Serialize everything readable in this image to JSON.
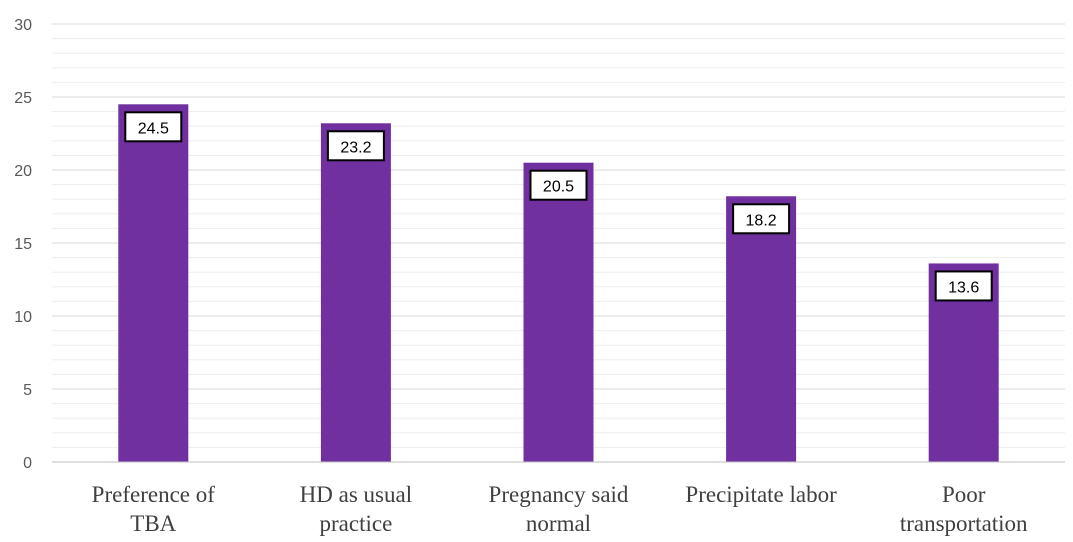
{
  "chart_data": {
    "type": "bar",
    "categories": [
      [
        "Preference of",
        "TBA"
      ],
      [
        "HD as usual",
        "practice"
      ],
      [
        "Pregnancy said",
        "normal"
      ],
      [
        "Precipitate labor"
      ],
      [
        "Poor",
        "transportation"
      ]
    ],
    "values": [
      24.5,
      23.2,
      20.5,
      18.2,
      13.6
    ],
    "data_labels": [
      "24.5",
      "23.2",
      "20.5",
      "18.2",
      "13.6"
    ],
    "ylim": [
      0,
      30
    ],
    "yticks": [
      "0",
      "5",
      "10",
      "15",
      "20",
      "25",
      "30"
    ],
    "minor_grid_step": 1,
    "grid": true,
    "title": "",
    "xlabel": "",
    "ylabel": "",
    "colors": {
      "bar": "#7030A0",
      "major_grid": "#d9d9d9",
      "minor_grid": "#ededed",
      "label_box_border": "#000000",
      "label_box_fill": "#ffffff"
    }
  }
}
